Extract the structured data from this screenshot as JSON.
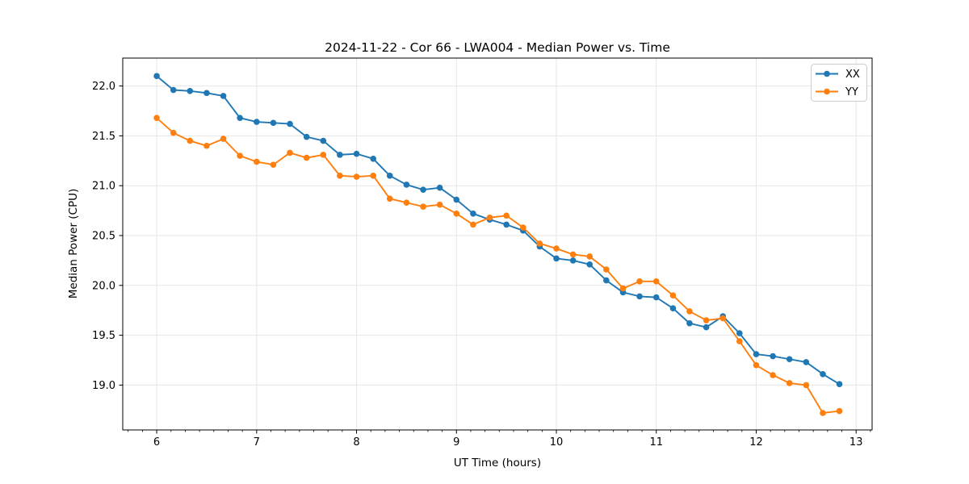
{
  "chart_data": {
    "type": "line",
    "title": "2024-11-22 - Cor 66 - LWA004 - Median Power vs. Time",
    "xlabel": "UT Time (hours)",
    "ylabel": "Median Power (CPU)",
    "xlim": [
      5.66,
      13.16
    ],
    "ylim": [
      18.55,
      22.28
    ],
    "xticks": [
      6,
      7,
      8,
      9,
      10,
      11,
      12,
      13
    ],
    "yticks": [
      19.0,
      19.5,
      20.0,
      20.5,
      21.0,
      21.5,
      22.0
    ],
    "grid": true,
    "x_minor_tick_divisions": 7,
    "legend": {
      "position": "upper right"
    },
    "colors": {
      "grid": "#e5e5e5",
      "spine": "#000000",
      "text": "#000000",
      "legend_border": "#cccccc",
      "legend_fill": "#ffffff"
    },
    "x": [
      6.0,
      6.167,
      6.333,
      6.5,
      6.667,
      6.833,
      7.0,
      7.167,
      7.333,
      7.5,
      7.667,
      7.833,
      8.0,
      8.167,
      8.333,
      8.5,
      8.667,
      8.833,
      9.0,
      9.167,
      9.333,
      9.5,
      9.667,
      9.833,
      10.0,
      10.167,
      10.333,
      10.5,
      10.667,
      10.833,
      11.0,
      11.167,
      11.333,
      11.5,
      11.667,
      11.833,
      12.0,
      12.167,
      12.333,
      12.5,
      12.667,
      12.833
    ],
    "series": [
      {
        "name": "XX",
        "color": "#1f77b4",
        "marker": "circle",
        "values": [
          22.1,
          21.96,
          21.95,
          21.93,
          21.9,
          21.68,
          21.64,
          21.63,
          21.62,
          21.49,
          21.45,
          21.31,
          21.32,
          21.27,
          21.1,
          21.01,
          20.96,
          20.98,
          20.86,
          20.72,
          20.66,
          20.61,
          20.55,
          20.39,
          20.27,
          20.25,
          20.21,
          20.05,
          19.93,
          19.89,
          19.88,
          19.77,
          19.62,
          19.58,
          19.69,
          19.52,
          19.31,
          19.29,
          19.26,
          19.23,
          19.11,
          19.01
        ]
      },
      {
        "name": "YY",
        "color": "#ff7f0e",
        "marker": "circle",
        "values": [
          21.68,
          21.53,
          21.45,
          21.4,
          21.47,
          21.3,
          21.24,
          21.21,
          21.33,
          21.28,
          21.31,
          21.1,
          21.09,
          21.1,
          20.87,
          20.83,
          20.79,
          20.81,
          20.72,
          20.61,
          20.68,
          20.7,
          20.58,
          20.42,
          20.37,
          20.31,
          20.29,
          20.16,
          19.97,
          20.04,
          20.04,
          19.9,
          19.74,
          19.65,
          19.67,
          19.44,
          19.2,
          19.1,
          19.02,
          19.0,
          18.72,
          18.74
        ]
      }
    ]
  }
}
